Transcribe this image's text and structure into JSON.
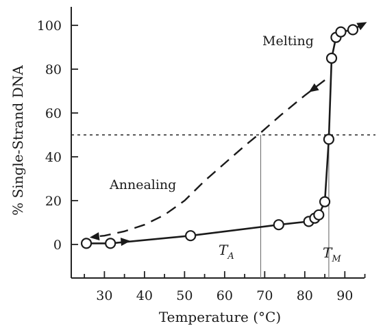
{
  "chart_data": {
    "type": "line",
    "xlabel": "Temperature (°C)",
    "ylabel": "% Single-Strand DNA",
    "xlim": [
      22,
      98
    ],
    "ylim": [
      -12,
      108
    ],
    "xticks": [
      30,
      40,
      50,
      60,
      70,
      80,
      90
    ],
    "yticks": [
      0,
      20,
      40,
      60,
      80,
      100
    ],
    "grid": false,
    "series": [
      {
        "name": "Melting",
        "style": "solid",
        "x": [
          25.5,
          31.5,
          51.5,
          73.5,
          81,
          82.5,
          83.5,
          85,
          86,
          86.7,
          87.8,
          89,
          92
        ],
        "y": [
          0.5,
          0.5,
          4,
          9,
          10.5,
          12,
          13.5,
          19.5,
          48,
          85,
          94.5,
          97,
          98
        ]
      },
      {
        "name": "Annealing",
        "style": "dashed",
        "x": [
          85,
          80,
          74,
          69,
          65,
          60,
          55,
          50,
          45,
          40,
          35,
          30,
          27
        ],
        "y": [
          75,
          68,
          59,
          51,
          45,
          37,
          29,
          20,
          13.5,
          9,
          6,
          4,
          3.5
        ]
      }
    ],
    "annotations": {
      "melting_label": "Melting",
      "annealing_label": "Annealing",
      "ta_main": "T",
      "ta_sub": "A",
      "tm_main": "T",
      "tm_sub": "M",
      "half_level": 50,
      "ta_value": 69,
      "tm_value": 86
    }
  }
}
